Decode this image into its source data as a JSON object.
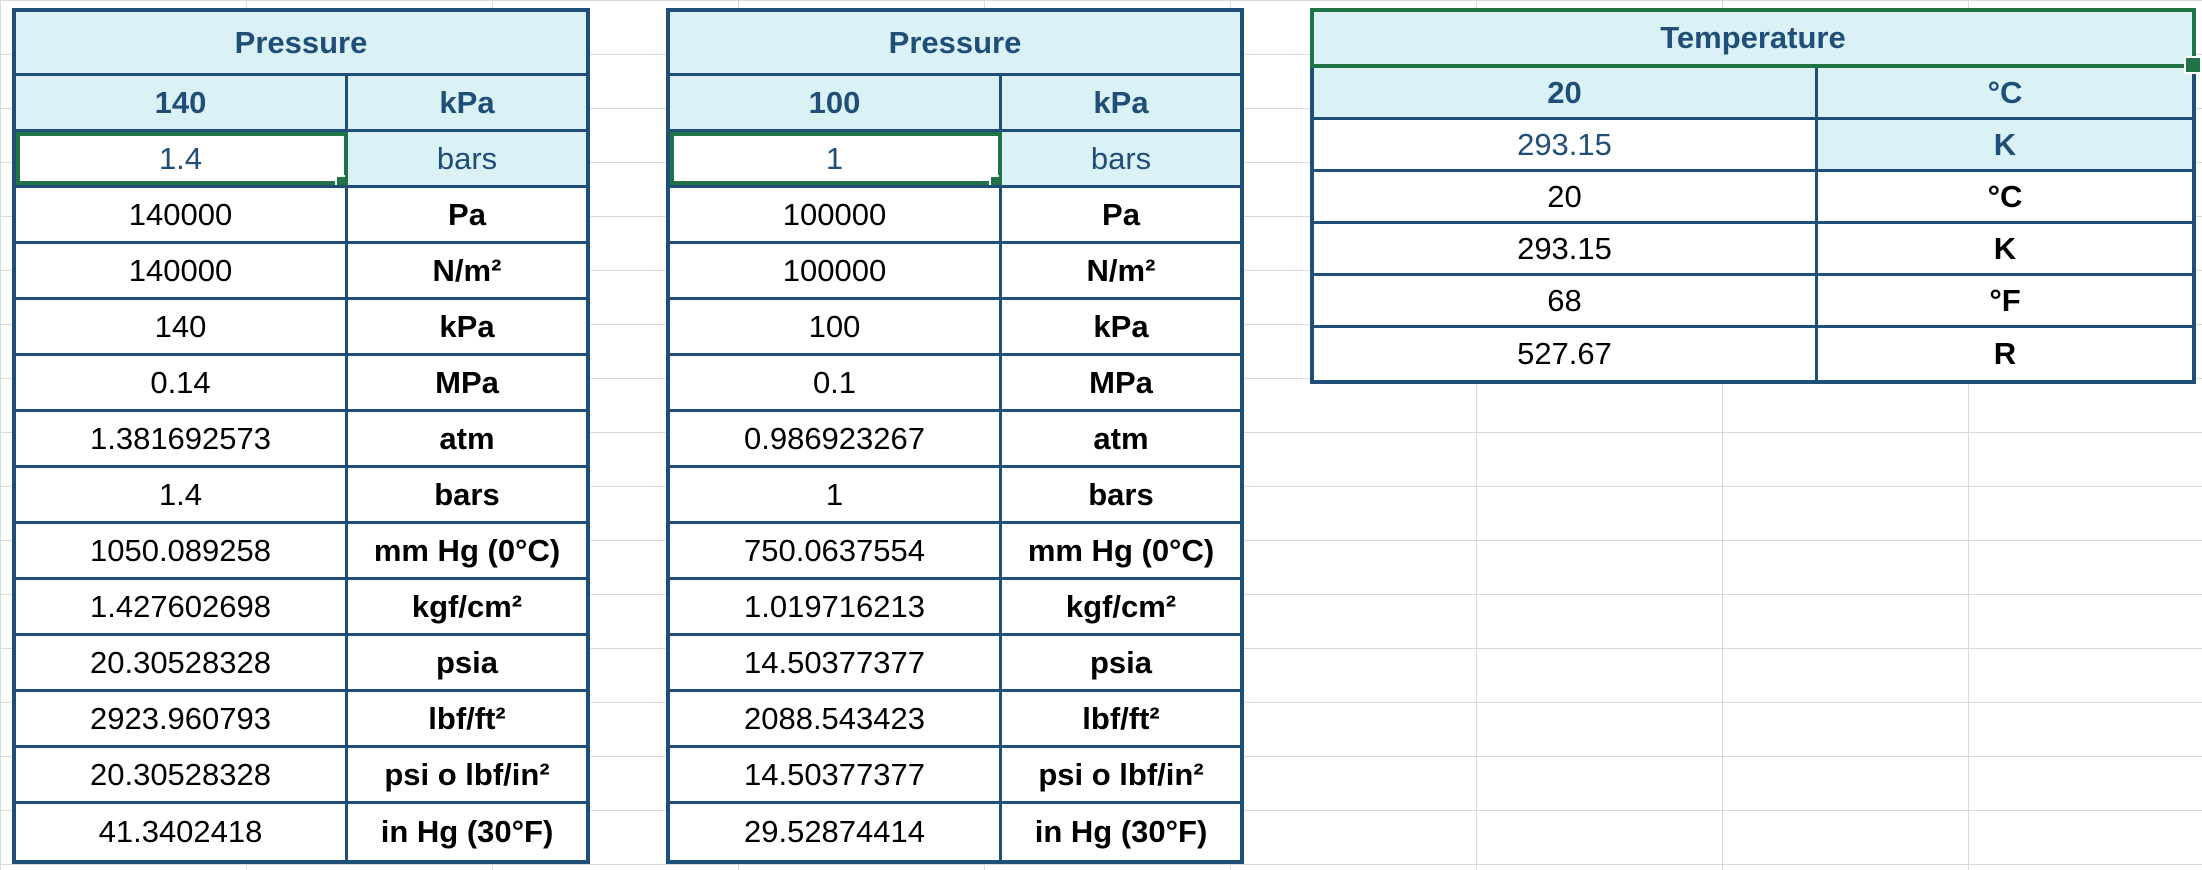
{
  "pressure_1": {
    "title": "Pressure",
    "input_value": "140",
    "input_unit": "kPa",
    "selected_value": "1.4",
    "selected_unit": "bars",
    "rows": [
      {
        "value": "140000",
        "unit": "Pa"
      },
      {
        "value": "140000",
        "unit": "N/m²"
      },
      {
        "value": "140",
        "unit": "kPa"
      },
      {
        "value": "0.14",
        "unit": "MPa"
      },
      {
        "value": "1.381692573",
        "unit": "atm"
      },
      {
        "value": "1.4",
        "unit": "bars"
      },
      {
        "value": "1050.089258",
        "unit": "mm Hg (0°C)"
      },
      {
        "value": "1.427602698",
        "unit": "kgf/cm²"
      },
      {
        "value": "20.30528328",
        "unit": "psia"
      },
      {
        "value": "2923.960793",
        "unit": "lbf/ft²"
      },
      {
        "value": "20.30528328",
        "unit": "psi o lbf/in²"
      },
      {
        "value": "41.3402418",
        "unit": "in Hg (30°F)"
      }
    ]
  },
  "pressure_2": {
    "title": "Pressure",
    "input_value": "100",
    "input_unit": "kPa",
    "selected_value": "1",
    "selected_unit": "bars",
    "rows": [
      {
        "value": "100000",
        "unit": "Pa"
      },
      {
        "value": "100000",
        "unit": "N/m²"
      },
      {
        "value": "100",
        "unit": "kPa"
      },
      {
        "value": "0.1",
        "unit": "MPa"
      },
      {
        "value": "0.986923267",
        "unit": "atm"
      },
      {
        "value": "1",
        "unit": "bars"
      },
      {
        "value": "750.0637554",
        "unit": "mm Hg (0°C)"
      },
      {
        "value": "1.019716213",
        "unit": "kgf/cm²"
      },
      {
        "value": "14.50377377",
        "unit": "psia"
      },
      {
        "value": "2088.543423",
        "unit": "lbf/ft²"
      },
      {
        "value": "14.50377377",
        "unit": "psi o lbf/in²"
      },
      {
        "value": "29.52874414",
        "unit": "in Hg (30°F)"
      }
    ]
  },
  "temperature": {
    "title": "Temperature",
    "input_value": "20",
    "input_unit": "°C",
    "second_value": "293.15",
    "second_unit": "K",
    "rows": [
      {
        "value": "20",
        "unit": "°C"
      },
      {
        "value": "293.15",
        "unit": "K"
      },
      {
        "value": "68",
        "unit": "°F"
      },
      {
        "value": "527.67",
        "unit": "R"
      }
    ]
  },
  "colors": {
    "border": "#1f4e79",
    "header_fill": "#daf2f5",
    "selection": "#217346"
  }
}
